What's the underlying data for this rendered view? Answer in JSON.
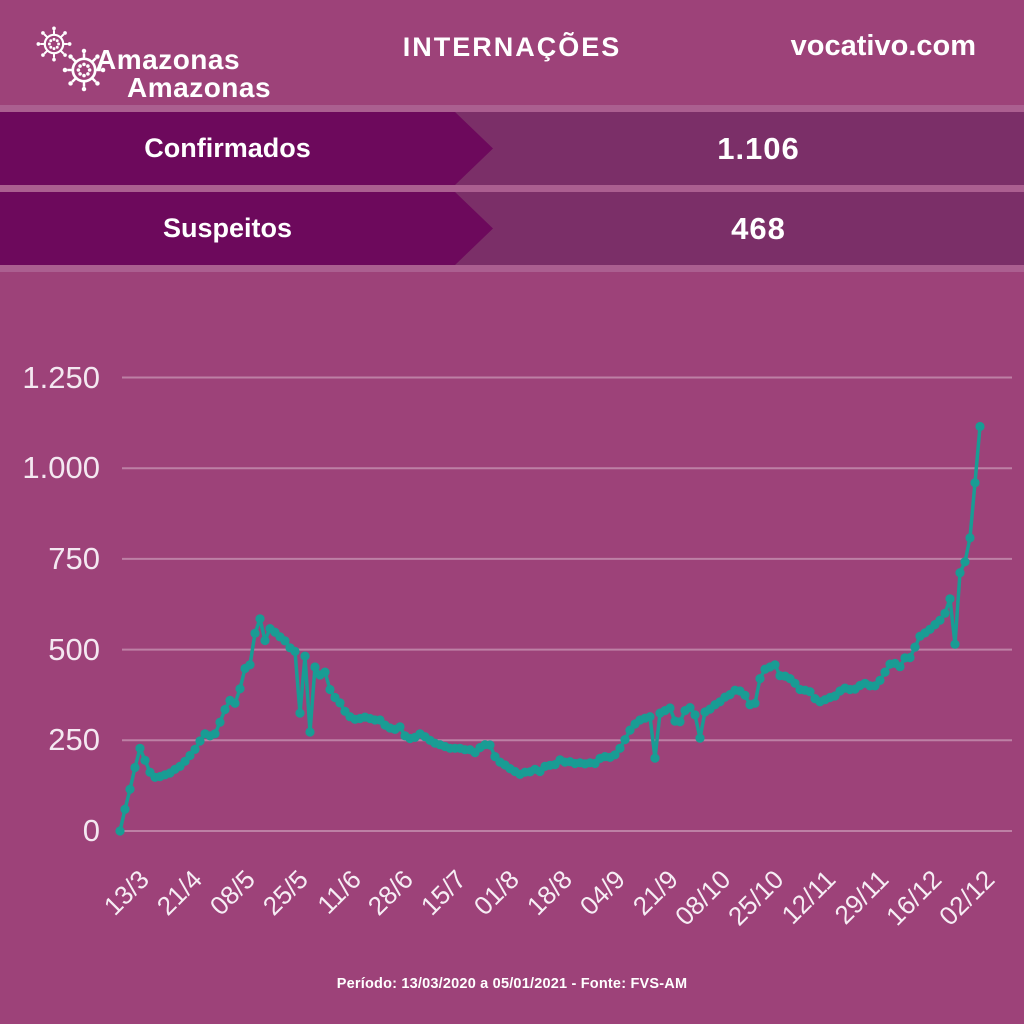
{
  "header": {
    "logo_line1": "Amazonas",
    "logo_line2": "Amazonas",
    "title": "INTERNAÇÕES",
    "site": "vocativo.com"
  },
  "banners": [
    {
      "label": "Confirmados",
      "value": "1.106"
    },
    {
      "label": "Suspeitos",
      "value": "468"
    }
  ],
  "footer": {
    "text": "Período: 13/03/2020 a 05/01/2021 - Fonte: FVS-AM"
  },
  "colors": {
    "background": "#9d4279",
    "banner_dark": "#6d095c",
    "banner_light": "#7b2f68",
    "separator": "#ab5f90",
    "line": "#199c94",
    "grid": "rgba(255,255,255,0.33)",
    "text": "#ffffff"
  },
  "chart_data": {
    "type": "line",
    "title": "INTERNAÇÕES",
    "xlabel": "",
    "ylabel": "",
    "ylim": [
      0,
      1250
    ],
    "grid": true,
    "marker": "circle",
    "legend": "none",
    "x_tick_labels": [
      "13/3",
      "21/4",
      "08/5",
      "25/5",
      "11/6",
      "28/6",
      "15/7",
      "01/8",
      "18/8",
      "04/9",
      "21/9",
      "08/10",
      "25/10",
      "12/11",
      "29/11",
      "16/12",
      "02/12"
    ],
    "y_ticks": [
      0,
      250,
      500,
      750,
      1000,
      1250
    ],
    "y_tick_labels": [
      "0",
      "250",
      "500",
      "750",
      "1.000",
      "1.250"
    ],
    "series": [
      {
        "name": "Internações",
        "color": "#199c94",
        "values": [
          0,
          60,
          115,
          175,
          228,
          195,
          162,
          148,
          150,
          155,
          160,
          170,
          178,
          192,
          208,
          225,
          248,
          268,
          262,
          268,
          300,
          335,
          360,
          352,
          392,
          448,
          458,
          545,
          585,
          525,
          558,
          548,
          535,
          524,
          505,
          495,
          325,
          482,
          273,
          452,
          430,
          438,
          390,
          368,
          353,
          330,
          315,
          308,
          310,
          314,
          310,
          306,
          306,
          292,
          284,
          280,
          287,
          262,
          255,
          258,
          268,
          260,
          250,
          242,
          238,
          233,
          228,
          228,
          228,
          224,
          224,
          216,
          230,
          238,
          237,
          205,
          190,
          182,
          172,
          164,
          156,
          162,
          163,
          170,
          164,
          178,
          181,
          183,
          196,
          190,
          191,
          186,
          188,
          185,
          188,
          186,
          200,
          205,
          203,
          210,
          228,
          252,
          278,
          295,
          306,
          311,
          315,
          201,
          325,
          332,
          339,
          303,
          301,
          332,
          340,
          320,
          256,
          328,
          336,
          348,
          356,
          369,
          376,
          388,
          386,
          374,
          348,
          352,
          420,
          446,
          452,
          458,
          428,
          427,
          420,
          407,
          390,
          388,
          384,
          365,
          356,
          362,
          368,
          372,
          386,
          394,
          390,
          391,
          401,
          407,
          400,
          400,
          415,
          438,
          460,
          462,
          453,
          477,
          478,
          507,
          537,
          546,
          556,
          569,
          581,
          600,
          640,
          515,
          712,
          742,
          808,
          960,
          1115
        ]
      }
    ]
  }
}
